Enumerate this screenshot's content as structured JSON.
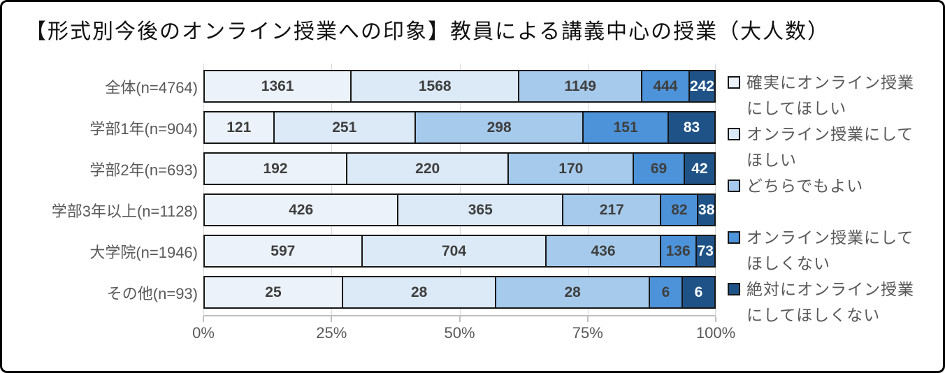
{
  "frame": {
    "title": "【形式別今後のオンライン授業への印象】教員による講義中心の授業（大人数）"
  },
  "chart_data": {
    "type": "bar",
    "subtype": "horizontal-100%-stacked",
    "title": "【形式別今後のオンライン授業への印象】教員による講義中心の授業（大人数）",
    "categories": [
      "全体(n=4764)",
      "学部1年(n=904)",
      "学部2年(n=693)",
      "学部3年以上(n=1128)",
      "大学院(n=1946)",
      "その他(n=93)"
    ],
    "totals": [
      4764,
      904,
      693,
      1128,
      1946,
      93
    ],
    "series": [
      {
        "name": "確実にオンライン授業にしてほしい",
        "color": "#EBF2F9",
        "values": [
          1361,
          121,
          192,
          426,
          597,
          25
        ]
      },
      {
        "name": "オンライン授業にしてほしい",
        "color": "#DCE9F6",
        "values": [
          1568,
          251,
          220,
          365,
          704,
          28
        ]
      },
      {
        "name": "どちらでもよい",
        "color": "#A6CAEC",
        "values": [
          1149,
          298,
          170,
          217,
          436,
          28
        ]
      },
      {
        "name": "オンライン授業にしてほしくない",
        "color": "#4D93D9",
        "values": [
          444,
          151,
          69,
          82,
          136,
          6
        ]
      },
      {
        "name": "絶対にオンライン授業にしてほしくない",
        "color": "#1F5388",
        "values": [
          242,
          83,
          42,
          38,
          73,
          6
        ]
      }
    ],
    "xticks": [
      "0%",
      "25%",
      "50%",
      "75%",
      "100%"
    ],
    "xlim": [
      0,
      100
    ],
    "grid": true,
    "legend_position": "right",
    "value_label_color": "#3F3F3F",
    "value_label_color_on_dark": "#FFFFFF",
    "gridline_color": "#D9D9D9",
    "axis_color": "#BFBFBF",
    "bar_border_color": "#161616"
  },
  "legend": {
    "items": [
      {
        "label": "確実にオンライン授業\nにしてほしい"
      },
      {
        "label": "オンライン授業にして\nほしい"
      },
      {
        "label": "どちらでもよい"
      },
      {
        "label": "オンライン授業にして\nほしくない"
      },
      {
        "label": "絶対にオンライン授業\nにしてほしくない"
      }
    ]
  }
}
